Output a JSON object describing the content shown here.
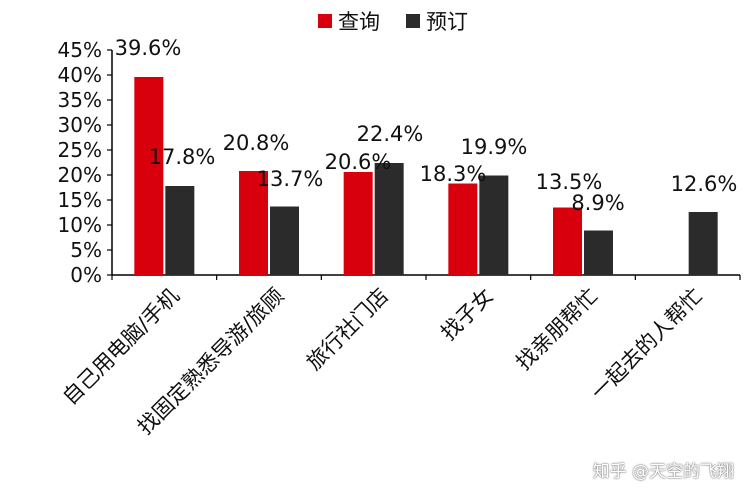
{
  "chart_data": {
    "type": "bar",
    "categories": [
      "自己用电脑/手机",
      "找固定熟悉导游/旅顾",
      "旅行社门店",
      "找子女",
      "找亲朋帮忙",
      "一起去的人帮忙"
    ],
    "series": [
      {
        "name": "查询",
        "color": "#d9000e",
        "values": [
          39.6,
          20.8,
          20.6,
          18.3,
          13.5,
          null
        ],
        "labels": [
          "39.6%",
          "20.8%",
          "20.6%",
          "18.3%",
          "13.5%",
          ""
        ]
      },
      {
        "name": "预订",
        "color": "#2b2b2b",
        "values": [
          17.8,
          13.7,
          22.4,
          19.9,
          8.9,
          12.6
        ],
        "labels": [
          "17.8%",
          "13.7%",
          "22.4%",
          "19.9%",
          "8.9%",
          "12.6%"
        ]
      }
    ],
    "yticks": [
      "0%",
      "5%",
      "10%",
      "15%",
      "20%",
      "25%",
      "30%",
      "35%",
      "40%",
      "45%"
    ],
    "ylim": [
      0,
      45
    ],
    "legend": "top-center",
    "grid": false
  },
  "watermark": "知乎 @天空的飞翔"
}
